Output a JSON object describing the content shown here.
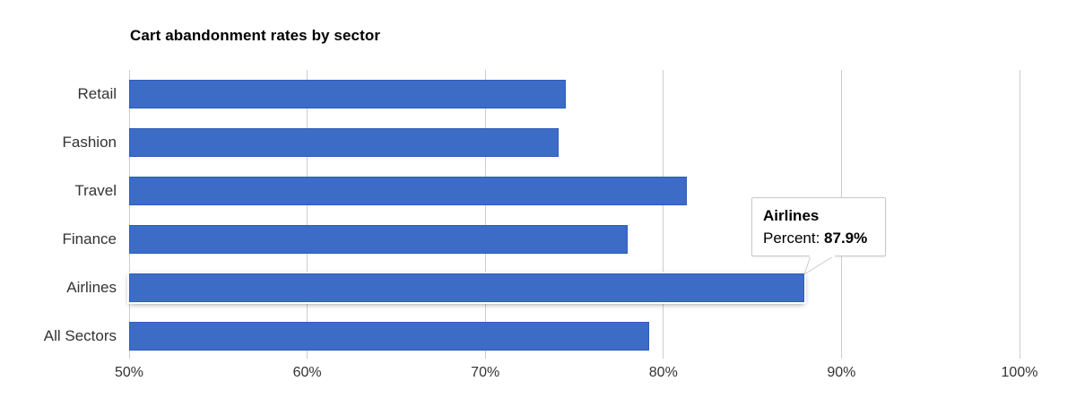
{
  "chart_data": {
    "type": "bar",
    "orientation": "horizontal",
    "title": "Cart abandonment rates by sector",
    "categories": [
      "Retail",
      "Fashion",
      "Travel",
      "Finance",
      "Airlines",
      "All Sectors"
    ],
    "values": [
      74.5,
      74.1,
      81.3,
      78.0,
      87.9,
      79.2
    ],
    "series_name": "Percent",
    "xlabel": "",
    "ylabel": "",
    "xlim": [
      50,
      100
    ],
    "x_ticks": [
      "50%",
      "60%",
      "70%",
      "80%",
      "90%",
      "100%"
    ],
    "grid": "vertical-only",
    "legend": "none",
    "bar_color": "#3d6cc6",
    "bar_border_color": "#2f5cb8",
    "gridline_color": "#cccccc",
    "highlighted_category": "Airlines"
  },
  "tooltip": {
    "title": "Airlines",
    "label": "Percent:",
    "value": "87.9%"
  }
}
